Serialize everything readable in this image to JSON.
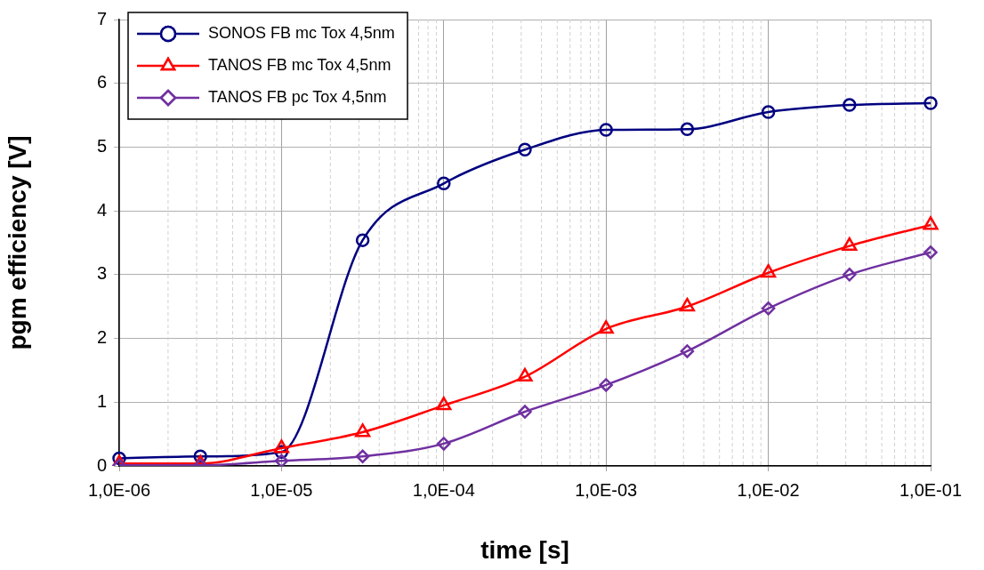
{
  "chart_data": {
    "type": "line",
    "xlabel": "time [s]",
    "ylabel": "pgm efficiency [V]",
    "categories": [
      "1,0E-06",
      null,
      "1,0E-05",
      null,
      "1,0E-04",
      null,
      "1,0E-03",
      null,
      "1,0E-02",
      null,
      "1,0E-01"
    ],
    "series": [
      {
        "name": "SONOS FB mc Tox 4,5nm",
        "color": "#000080",
        "marker": "circle",
        "values": [
          0.12,
          0.15,
          0.22,
          3.54,
          4.43,
          4.96,
          5.27,
          5.28,
          5.55,
          5.66,
          5.69
        ]
      },
      {
        "name": "TANOS FB mc Tox 4,5nm",
        "color": "#ff0000",
        "marker": "triangle",
        "values": [
          0.04,
          0.04,
          0.28,
          0.53,
          0.95,
          1.4,
          2.15,
          2.5,
          3.03,
          3.45,
          3.78
        ]
      },
      {
        "name": "TANOS FB pc Tox 4,5nm",
        "color": "#7030a0",
        "marker": "diamond",
        "values": [
          0.01,
          0.01,
          0.08,
          0.15,
          0.35,
          0.85,
          1.27,
          1.8,
          2.47,
          3.0,
          3.35
        ]
      }
    ],
    "ylim": [
      0,
      7
    ],
    "yticks": [
      0,
      1,
      2,
      3,
      4,
      5,
      6,
      7
    ],
    "grid": true,
    "legend": "top left",
    "line_style": "solid"
  }
}
